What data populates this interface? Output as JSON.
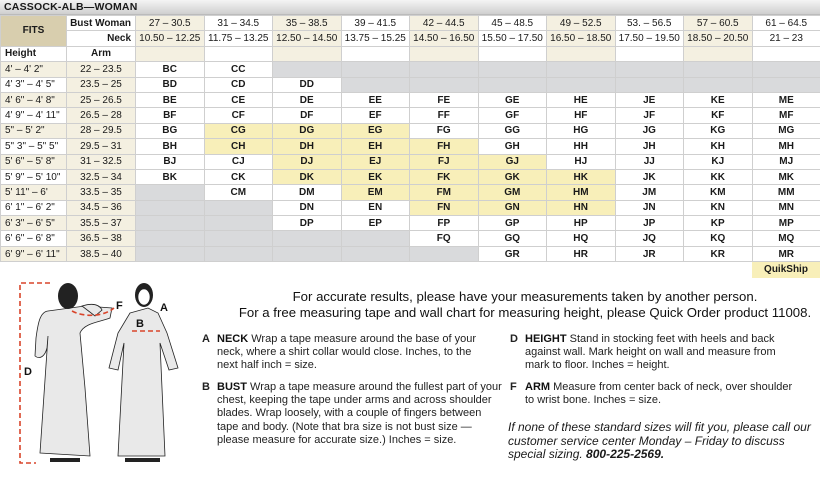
{
  "title": "CASSOCK-ALB—WOMAN",
  "header": {
    "fits": "FITS",
    "bust_label": "Bust Woman",
    "neck_label": "Neck",
    "height_label": "Height",
    "arm_label": "Arm",
    "bust": [
      "27 – 30.5",
      "31 – 34.5",
      "35 – 38.5",
      "39 – 41.5",
      "42 – 44.5",
      "45 – 48.5",
      "49 – 52.5",
      "53. – 56.5",
      "57 – 60.5",
      "61 – 64.5"
    ],
    "neck": [
      "10.50 – 12.25",
      "11.75 – 13.25",
      "12.50 – 14.50",
      "13.75 – 15.25",
      "14.50 – 16.50",
      "15.50 – 17.50",
      "16.50 – 18.50",
      "17.50 – 19.50",
      "18.50 – 20.50",
      "21 – 23"
    ]
  },
  "rows": [
    {
      "height": "4' – 4' 2\"",
      "arm": "22 – 23.5",
      "cells": [
        "BC",
        "CC",
        null,
        null,
        null,
        null,
        null,
        null,
        null,
        null
      ],
      "quikship": []
    },
    {
      "height": "4' 3\" – 4' 5\"",
      "arm": "23.5 – 25",
      "cells": [
        "BD",
        "CD",
        "DD",
        null,
        null,
        null,
        null,
        null,
        null,
        null
      ],
      "quikship": []
    },
    {
      "height": "4' 6\" – 4' 8\"",
      "arm": "25 – 26.5",
      "cells": [
        "BE",
        "CE",
        "DE",
        "EE",
        "FE",
        "GE",
        "HE",
        "JE",
        "KE",
        "ME"
      ],
      "quikship": []
    },
    {
      "height": "4' 9\" – 4' 11\"",
      "arm": "26.5 – 28",
      "cells": [
        "BF",
        "CF",
        "DF",
        "EF",
        "FF",
        "GF",
        "HF",
        "JF",
        "KF",
        "MF"
      ],
      "quikship": []
    },
    {
      "height": "5\" – 5' 2\"",
      "arm": "28 – 29.5",
      "cells": [
        "BG",
        "CG",
        "DG",
        "EG",
        "FG",
        "GG",
        "HG",
        "JG",
        "KG",
        "MG"
      ],
      "quikship": [
        1,
        2,
        3
      ]
    },
    {
      "height": "5\" 3\" – 5\" 5\"",
      "arm": "29.5 – 31",
      "cells": [
        "BH",
        "CH",
        "DH",
        "EH",
        "FH",
        "GH",
        "HH",
        "JH",
        "KH",
        "MH"
      ],
      "quikship": [
        1,
        2,
        3,
        4
      ]
    },
    {
      "height": "5' 6\" – 5' 8\"",
      "arm": "31 – 32.5",
      "cells": [
        "BJ",
        "CJ",
        "DJ",
        "EJ",
        "FJ",
        "GJ",
        "HJ",
        "JJ",
        "KJ",
        "MJ"
      ],
      "quikship": [
        2,
        3,
        4,
        5
      ]
    },
    {
      "height": "5' 9\" – 5' 10\"",
      "arm": "32.5 – 34",
      "cells": [
        "BK",
        "CK",
        "DK",
        "EK",
        "FK",
        "GK",
        "HK",
        "JK",
        "KK",
        "MK"
      ],
      "quikship": [
        2,
        3,
        4,
        5,
        6
      ]
    },
    {
      "height": "5' 11\" – 6'",
      "arm": "33.5 – 35",
      "cells": [
        null,
        "CM",
        "DM",
        "EM",
        "FM",
        "GM",
        "HM",
        "JM",
        "KM",
        "MM"
      ],
      "quikship": [
        3,
        4,
        5,
        6
      ]
    },
    {
      "height": "6' 1\" – 6' 2\"",
      "arm": "34.5 – 36",
      "cells": [
        null,
        null,
        "DN",
        "EN",
        "FN",
        "GN",
        "HN",
        "JN",
        "KN",
        "MN"
      ],
      "quikship": [
        4,
        5,
        6
      ]
    },
    {
      "height": "6' 3\" – 6' 5\"",
      "arm": "35.5 – 37",
      "cells": [
        null,
        null,
        "DP",
        "EP",
        "FP",
        "GP",
        "HP",
        "JP",
        "KP",
        "MP"
      ],
      "quikship": []
    },
    {
      "height": "6' 6\" – 6' 8\"",
      "arm": "36.5 – 38",
      "cells": [
        null,
        null,
        null,
        null,
        "FQ",
        "GQ",
        "HQ",
        "JQ",
        "KQ",
        "MQ"
      ],
      "quikship": []
    },
    {
      "height": "6' 9\" – 6' 11\"",
      "arm": "38.5 – 40",
      "cells": [
        null,
        null,
        null,
        null,
        null,
        "GR",
        "HR",
        "JR",
        "KR",
        "MR"
      ],
      "quikship": []
    }
  ],
  "legend": {
    "quikship": "QuikShip",
    "quikship_color": "#f8efb9",
    "unavailable_color": "#d9dadc"
  },
  "figure": {
    "labels": {
      "a": "A",
      "b": "B",
      "d": "D",
      "f": "F"
    },
    "measure_color": "#d9452b"
  },
  "instructions": {
    "line1": "For accurate results, please have your measurements taken by another person.",
    "line2": "For a free measuring tape and wall chart for measuring height, please Quick Order product 11008.",
    "items": [
      {
        "letter": "A",
        "term": "NECK",
        "text": "Wrap a tape measure around the base of your neck, where a shirt collar would close. Inches, to the next half inch = size."
      },
      {
        "letter": "B",
        "term": "BUST",
        "text": "Wrap a tape measure around the fullest part of your chest, keeping the tape under arms and across shoulder blades. Wrap loosely, with a couple of fingers between tape and body. (Note that bra size is not bust size — please measure for accurate size.) Inches = size."
      },
      {
        "letter": "D",
        "term": "HEIGHT",
        "text": "Stand in stocking feet with heels and back against wall. Mark height on wall and measure from mark to floor. Inches = height."
      },
      {
        "letter": "F",
        "term": "ARM",
        "text": "Measure from center back of neck, over shoulder to wrist bone. Inches = size."
      }
    ],
    "note": "If none of these standard sizes will fit you, please call our customer service center Monday – Friday to discuss special sizing.",
    "phone": "800-225-2569."
  }
}
